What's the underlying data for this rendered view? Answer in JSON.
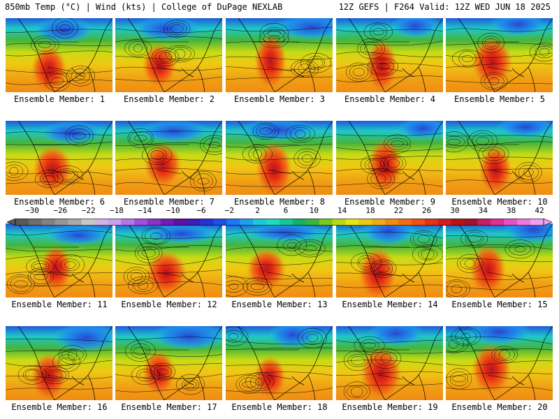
{
  "header": {
    "left": "850mb Temp (°C) | Wind (kts) | College of DuPage NEXLAB",
    "right": "12Z GEFS | F264 Valid: 12Z WED JUN 18 2025"
  },
  "members": [
    "Ensemble Member: 1",
    "Ensemble Member: 2",
    "Ensemble Member: 3",
    "Ensemble Member: 4",
    "Ensemble Member: 5",
    "Ensemble Member: 6",
    "Ensemble Member: 7",
    "Ensemble Member: 8",
    "Ensemble Member: 9",
    "Ensemble Member: 10",
    "Ensemble Member: 11",
    "Ensemble Member: 12",
    "Ensemble Member: 13",
    "Ensemble Member: 14",
    "Ensemble Member: 15",
    "Ensemble Member: 16",
    "Ensemble Member: 17",
    "Ensemble Member: 18",
    "Ensemble Member: 19",
    "Ensemble Member: 20"
  ],
  "colorbar": {
    "ticks": [
      "−30",
      "−26",
      "−22",
      "−18",
      "−14",
      "−10",
      "−6",
      "−2",
      "2",
      "6",
      "10",
      "14",
      "18",
      "22",
      "26",
      "30",
      "34",
      "38",
      "42"
    ],
    "colors": [
      "#5a5a5a",
      "#6e6e6e",
      "#828282",
      "#969696",
      "#aaaaaa",
      "#c8c8c8",
      "#d2b4e6",
      "#c8a0f0",
      "#b478e6",
      "#a050dc",
      "#8c32c8",
      "#6e1eb4",
      "#5a14a0",
      "#3c1eb4",
      "#2832d2",
      "#1e50e6",
      "#1e78f0",
      "#1ea0f0",
      "#1ec8dc",
      "#1edcbe",
      "#14c896",
      "#14b464",
      "#3cb43c",
      "#78c81e",
      "#b4dc14",
      "#e6e614",
      "#f0c814",
      "#f0aa14",
      "#f08c14",
      "#f06e14",
      "#f05014",
      "#e63214",
      "#d21e1e",
      "#b41414",
      "#a01428",
      "#c81e64",
      "#dc3296",
      "#e650c8",
      "#f078dc",
      "#f0a0f0"
    ]
  }
}
